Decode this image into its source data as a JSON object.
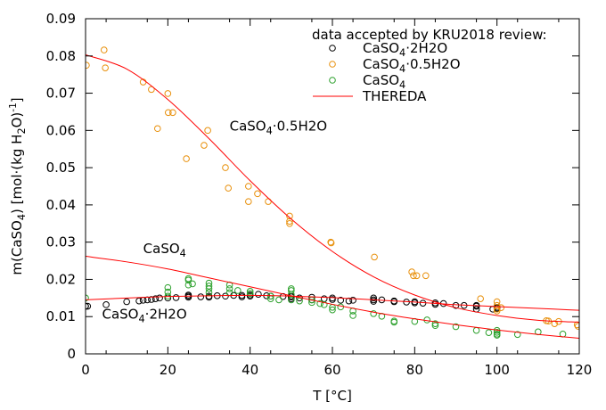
{
  "chart_data": {
    "type": "scatter",
    "xlabel": "T [°C]",
    "ylabel": "m(CaSO4) [mol·(kg H2O)-1]",
    "xlim": [
      0,
      120
    ],
    "ylim": [
      0,
      0.09
    ],
    "xticks": [
      "0",
      "20",
      "40",
      "60",
      "80",
      "100",
      "120"
    ],
    "yticks": [
      "0",
      "0.01",
      "0.02",
      "0.03",
      "0.04",
      "0.05",
      "0.06",
      "0.07",
      "0.08",
      "0.09"
    ],
    "grid": false,
    "legend": {
      "title": "data accepted by KRU2018 review:",
      "placement": "top-right"
    },
    "annotations": [
      {
        "text": "CaSO4·0.5H2O",
        "x": 35,
        "y": 0.06
      },
      {
        "text": "CaSO4",
        "x": 14,
        "y": 0.027
      },
      {
        "text": "CaSO4·2H2O",
        "x": 4,
        "y": 0.0095
      }
    ],
    "series": [
      {
        "name": "CaSO4·2H2O",
        "kind": "points",
        "color": "#000000",
        "x": [
          0,
          0,
          0.5,
          5,
          10,
          13,
          14,
          15,
          16,
          17,
          18,
          20,
          22,
          25,
          25,
          25,
          28,
          30,
          30,
          32,
          34,
          36,
          38,
          38,
          40,
          40,
          42,
          44,
          45,
          48,
          50,
          50,
          50,
          52,
          55,
          55,
          58,
          60,
          60,
          62,
          64,
          65,
          70,
          70,
          70,
          72,
          75,
          75,
          78,
          80,
          80,
          82,
          85,
          85,
          87,
          90,
          92,
          95,
          95,
          95,
          99,
          100,
          100
        ],
        "y": [
          0.0128,
          0.0128,
          0.0128,
          0.0132,
          0.014,
          0.0142,
          0.0144,
          0.0145,
          0.0146,
          0.0148,
          0.015,
          0.015,
          0.0151,
          0.0152,
          0.0155,
          0.0158,
          0.0153,
          0.0152,
          0.0155,
          0.0156,
          0.0155,
          0.0157,
          0.0157,
          0.0153,
          0.0155,
          0.0158,
          0.016,
          0.0156,
          0.0155,
          0.0154,
          0.0153,
          0.0148,
          0.0155,
          0.015,
          0.0145,
          0.0152,
          0.0148,
          0.015,
          0.0146,
          0.0144,
          0.0142,
          0.0144,
          0.015,
          0.0145,
          0.0141,
          0.0145,
          0.0142,
          0.014,
          0.0139,
          0.014,
          0.0137,
          0.0136,
          0.0133,
          0.0137,
          0.0135,
          0.013,
          0.013,
          0.0128,
          0.013,
          0.012,
          0.012,
          0.0125,
          0.0122
        ]
      },
      {
        "name": "CaSO4·0.5H2O",
        "kind": "points",
        "color": "#e8900c",
        "x": [
          0.2,
          4.5,
          4.8,
          14,
          16,
          17.5,
          20,
          20.1,
          21.2,
          24.5,
          28.8,
          29.7,
          34,
          34.7,
          39.6,
          39.6,
          41.8,
          44.4,
          49.6,
          49.6,
          49.6,
          59.6,
          59.7,
          70.2,
          79.3,
          79.7,
          80.5,
          82.7,
          96,
          100,
          100,
          100,
          100,
          101,
          112,
          112.5,
          114,
          115,
          119.5,
          119.7
        ],
        "y": [
          0.0775,
          0.0816,
          0.0768,
          0.073,
          0.071,
          0.0605,
          0.0699,
          0.0648,
          0.0648,
          0.0524,
          0.056,
          0.06,
          0.05,
          0.0445,
          0.045,
          0.0409,
          0.043,
          0.0409,
          0.037,
          0.0356,
          0.035,
          0.03,
          0.0298,
          0.026,
          0.022,
          0.021,
          0.021,
          0.021,
          0.0148,
          0.014,
          0.013,
          0.0115,
          0.012,
          0.0124,
          0.0089,
          0.0088,
          0.0081,
          0.0087,
          0.0078,
          0.0074
        ]
      },
      {
        "name": "CaSO4",
        "kind": "points",
        "color": "#2ca02c",
        "x": [
          0,
          20,
          20,
          20,
          25,
          25,
          25,
          26,
          30,
          30,
          30,
          30,
          35,
          35,
          35,
          37,
          40,
          40,
          45,
          45,
          47,
          50,
          50,
          50,
          50,
          52,
          55,
          55,
          57,
          58,
          60,
          60,
          62,
          65,
          65,
          70,
          72,
          75,
          75,
          80,
          83,
          85,
          85,
          90,
          95,
          98,
          100,
          100,
          100,
          100,
          105,
          110,
          116
        ],
        "y": [
          0.015,
          0.0178,
          0.0166,
          0.0155,
          0.0202,
          0.0198,
          0.0185,
          0.0188,
          0.019,
          0.0182,
          0.0175,
          0.0165,
          0.0185,
          0.0175,
          0.0164,
          0.017,
          0.0168,
          0.0162,
          0.0155,
          0.0148,
          0.0145,
          0.0175,
          0.017,
          0.016,
          0.0145,
          0.0142,
          0.0145,
          0.0138,
          0.0135,
          0.0132,
          0.0125,
          0.0118,
          0.0126,
          0.0115,
          0.0103,
          0.0108,
          0.0101,
          0.0088,
          0.0085,
          0.0087,
          0.0091,
          0.0081,
          0.0076,
          0.0073,
          0.0063,
          0.0057,
          0.0063,
          0.0058,
          0.0053,
          0.005,
          0.0052,
          0.0059,
          0.0053
        ]
      },
      {
        "name": "THEREDA",
        "kind": "lines",
        "color": "#ff0000",
        "curves": [
          {
            "x": [
              0,
              10,
              20,
              30,
              40,
              50,
              60,
              70,
              80,
              90,
              100,
              110,
              120
            ],
            "y": [
              0.0803,
              0.0765,
              0.0683,
              0.0578,
              0.0465,
              0.0362,
              0.0275,
              0.0207,
              0.0158,
              0.0124,
              0.0103,
              0.009,
              0.0085
            ]
          },
          {
            "x": [
              0,
              10,
              20,
              30,
              40,
              50,
              60,
              70,
              80,
              90,
              100,
              110,
              120
            ],
            "y": [
              0.0262,
              0.0247,
              0.0228,
              0.0204,
              0.018,
              0.0156,
              0.0133,
              0.0112,
              0.0094,
              0.0078,
              0.0064,
              0.0052,
              0.0042
            ]
          },
          {
            "x": [
              0,
              10,
              20,
              30,
              40,
              50,
              60,
              70,
              80,
              90,
              100,
              110,
              120
            ],
            "y": [
              0.0145,
              0.015,
              0.0154,
              0.0156,
              0.0157,
              0.0155,
              0.0151,
              0.0145,
              0.0139,
              0.0132,
              0.0127,
              0.0122,
              0.0117
            ]
          }
        ]
      }
    ]
  }
}
